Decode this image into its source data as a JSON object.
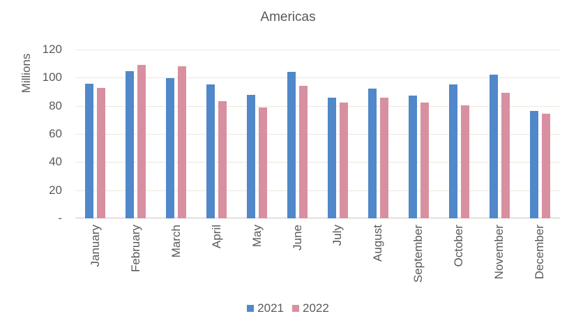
{
  "palette": {
    "series_2021": "#5088C9",
    "series_2022": "#D890A0",
    "gridline": "#ECE7DC",
    "axis_line": "#C9C4BB",
    "text": "#595959",
    "background": "#FFFFFF"
  },
  "chart_data": {
    "type": "bar",
    "title": "Americas",
    "ylabel": "Millions",
    "xlabel": "",
    "ylim": [
      0,
      120
    ],
    "ytick_interval": 20,
    "grid": true,
    "legend_position": "bottom",
    "categories": [
      "January",
      "February",
      "March",
      "April",
      "May",
      "June",
      "July",
      "August",
      "September",
      "October",
      "November",
      "December"
    ],
    "series": [
      {
        "name": "2021",
        "color": "#5088C9",
        "values": [
          95.5,
          104.5,
          99.5,
          95,
          88,
          104,
          86,
          92,
          87.5,
          95,
          102,
          76.5
        ]
      },
      {
        "name": "2022",
        "color": "#D890A0",
        "values": [
          92.5,
          109,
          108,
          83.5,
          79,
          94,
          82.5,
          86,
          82.5,
          80.5,
          89.5,
          74.5
        ]
      }
    ],
    "yticks": [
      {
        "value": 0,
        "label": "-"
      },
      {
        "value": 20,
        "label": "20"
      },
      {
        "value": 40,
        "label": "40"
      },
      {
        "value": 60,
        "label": "60"
      },
      {
        "value": 80,
        "label": "80"
      },
      {
        "value": 100,
        "label": "100"
      },
      {
        "value": 120,
        "label": "120"
      }
    ]
  }
}
